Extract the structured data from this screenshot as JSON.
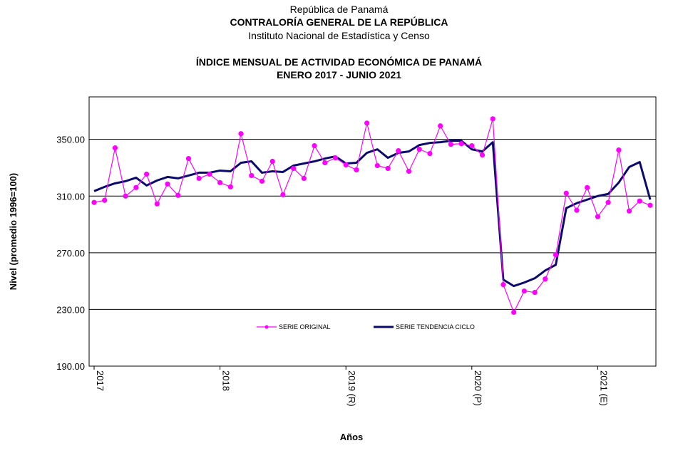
{
  "header": {
    "line1": "República de Panamá",
    "line2": "CONTRALORÍA  GENERAL DE LA REPÚBLICA",
    "line3": "Instituto Nacional de Estadística y Censo",
    "line4": "ÍNDICE MENSUAL DE ACTIVIDAD ECONÓMICA DE PANAMÁ",
    "line5": "ENERO 2017 -  JUNIO 2021"
  },
  "colors": {
    "original": "#ff00ff",
    "trend": "#0a0a6e",
    "grid": "#000000"
  },
  "chart_data": {
    "type": "line",
    "title": "ÍNDICE MENSUAL DE ACTIVIDAD ECONÓMICA DE PANAMÁ",
    "subtitle": "ENERO 2017 -  JUNIO 2021",
    "xlabel": "Años",
    "ylabel": "Nivel (promedio 1996=100)",
    "ylim": [
      190,
      380
    ],
    "yticks": [
      190,
      230,
      270,
      310,
      350
    ],
    "ytick_labels": [
      "190.00",
      "230.00",
      "270.00",
      "310.00",
      "350.00"
    ],
    "x_tick_labels": [
      "2017",
      "2018",
      "2019 (R)",
      "2020 (P)",
      "2021 (E)"
    ],
    "x_tick_months": [
      1,
      13,
      25,
      37,
      49
    ],
    "months": 54,
    "grid": true,
    "legend_position": "center",
    "series": [
      {
        "name": "SERIE ORIGINAL",
        "values": [
          305.5,
          307,
          344,
          310,
          316,
          325.5,
          304.5,
          318.5,
          310.5,
          336.5,
          322.5,
          325.5,
          319.5,
          316.5,
          354,
          324.5,
          320.5,
          334.5,
          311,
          329.5,
          322.5,
          345.5,
          333.5,
          337,
          332,
          328.5,
          361.5,
          331.5,
          329.5,
          342,
          327.5,
          343,
          340,
          359.5,
          346.5,
          347,
          345.5,
          339,
          364.5,
          247.5,
          228,
          243,
          242,
          251.5,
          268.5,
          312,
          300,
          316,
          295.5,
          305.5,
          342.5,
          299.5,
          306.5,
          303.5
        ]
      },
      {
        "name": "SERIE TENDENCIA CICLO",
        "values": [
          313.5,
          316.5,
          319,
          320.5,
          323,
          317.5,
          321,
          323.5,
          322.5,
          324.5,
          326.5,
          326.5,
          328,
          327.5,
          333.5,
          334.5,
          326.5,
          327.5,
          327,
          331.5,
          333,
          334.5,
          336.5,
          338,
          333,
          333.5,
          340.5,
          343,
          337,
          340.5,
          341.5,
          346,
          347.5,
          348,
          349,
          349,
          343,
          341.5,
          348,
          251,
          246.5,
          249,
          252,
          257.5,
          261.5,
          301.5,
          305,
          307.5,
          310,
          311.5,
          319.5,
          330.5,
          334,
          307.5
        ]
      }
    ]
  }
}
